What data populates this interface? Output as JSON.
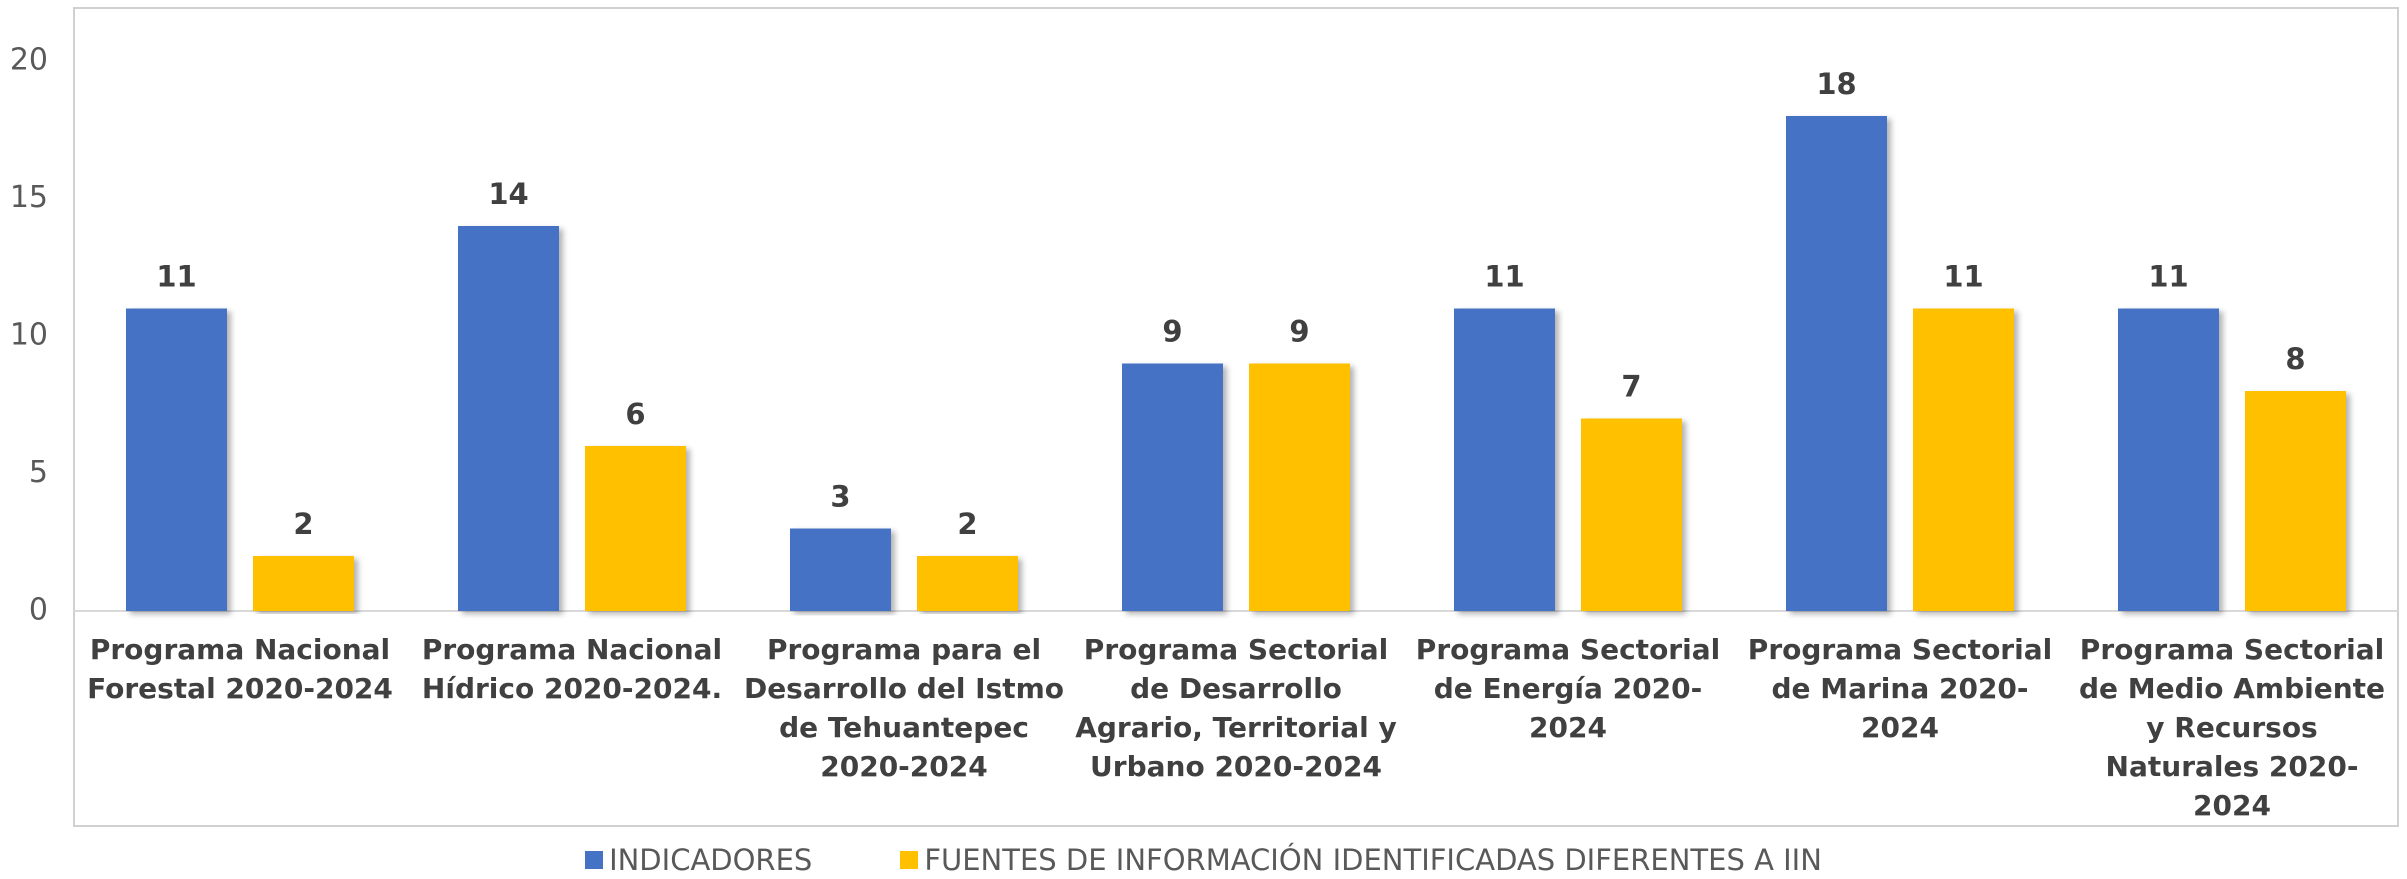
{
  "chart_data": {
    "type": "bar",
    "categories": [
      "Programa Nacional Forestal 2020-2024",
      "Programa Nacional Hídrico 2020-2024.",
      "Programa para el Desarrollo del Istmo de Tehuantepec 2020-2024",
      "Programa Sectorial de Desarrollo Agrario, Territorial y Urbano 2020-2024",
      "Programa Sectorial de Energía 2020-2024",
      "Programa Sectorial de Marina 2020-2024",
      "Programa Sectorial de Medio Ambiente y Recursos Naturales 2020-2024"
    ],
    "series": [
      {
        "name": "INDICADORES",
        "color": "#4472c4",
        "values": [
          11,
          14,
          3,
          9,
          11,
          18,
          11
        ]
      },
      {
        "name": "FUENTES DE INFORMACIÓN IDENTIFICADAS DIFERENTES A IIN",
        "color": "#ffc000",
        "values": [
          2,
          6,
          2,
          9,
          7,
          11,
          8
        ]
      }
    ],
    "ylim": [
      0,
      20
    ],
    "yticks": [
      0,
      5,
      10,
      15,
      20
    ],
    "grid": false,
    "legend": "bottom"
  }
}
